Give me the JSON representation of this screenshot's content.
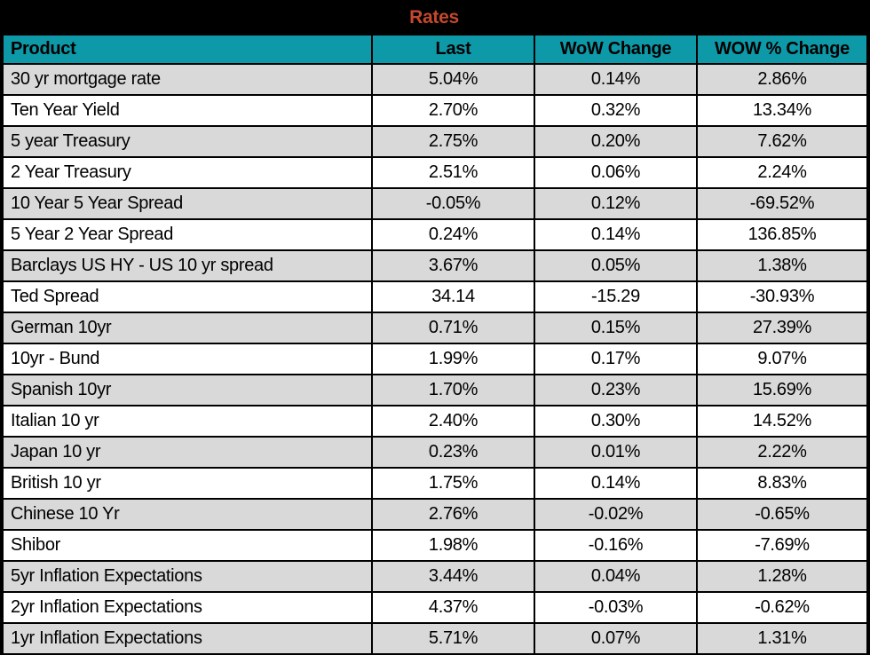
{
  "title": {
    "text": "Rates",
    "color": "#C5482B",
    "background": "#000000"
  },
  "theme": {
    "header_bg": "#0E99A8",
    "header_text": "#000000",
    "row_bg": "#FFFFFF",
    "row_alt_bg": "#D9D9D9",
    "border_color": "#000000",
    "data_text": "#000000"
  },
  "chart_data": {
    "type": "table",
    "title": "Rates",
    "columns": [
      "Product",
      "Last",
      "WoW Change",
      "WOW % Change"
    ],
    "rows": [
      [
        "30 yr mortgage rate",
        "5.04%",
        "0.14%",
        "2.86%"
      ],
      [
        "Ten Year Yield",
        "2.70%",
        "0.32%",
        "13.34%"
      ],
      [
        "5 year Treasury",
        "2.75%",
        "0.20%",
        "7.62%"
      ],
      [
        "2 Year Treasury",
        "2.51%",
        "0.06%",
        "2.24%"
      ],
      [
        "10 Year 5 Year Spread",
        "-0.05%",
        "0.12%",
        "-69.52%"
      ],
      [
        "5 Year 2 Year Spread",
        "0.24%",
        "0.14%",
        "136.85%"
      ],
      [
        "Barclays US HY - US 10 yr spread",
        "3.67%",
        "0.05%",
        "1.38%"
      ],
      [
        "Ted Spread",
        "34.14",
        "-15.29",
        "-30.93%"
      ],
      [
        "German 10yr",
        "0.71%",
        "0.15%",
        "27.39%"
      ],
      [
        "10yr - Bund",
        "1.99%",
        "0.17%",
        "9.07%"
      ],
      [
        "Spanish 10yr",
        "1.70%",
        "0.23%",
        "15.69%"
      ],
      [
        "Italian 10 yr",
        "2.40%",
        "0.30%",
        "14.52%"
      ],
      [
        "Japan 10 yr",
        "0.23%",
        "0.01%",
        "2.22%"
      ],
      [
        "British 10 yr",
        "1.75%",
        "0.14%",
        "8.83%"
      ],
      [
        "Chinese 10 Yr",
        "2.76%",
        "-0.02%",
        "-0.65%"
      ],
      [
        "Shibor",
        "1.98%",
        "-0.16%",
        "-7.69%"
      ],
      [
        "5yr Inflation Expectations",
        "3.44%",
        "0.04%",
        "1.28%"
      ],
      [
        "2yr Inflation Expectations",
        "4.37%",
        "-0.03%",
        "-0.62%"
      ],
      [
        "1yr Inflation Expectations",
        "5.71%",
        "0.07%",
        "1.31%"
      ]
    ]
  }
}
